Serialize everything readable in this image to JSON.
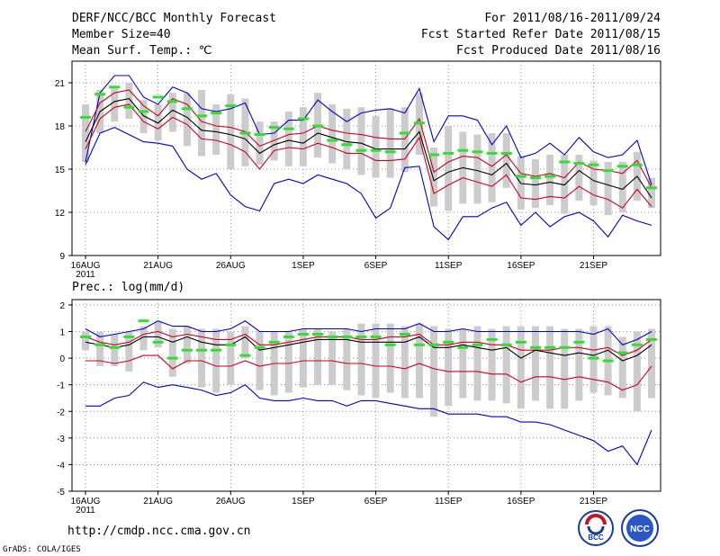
{
  "header": {
    "title": "DERF/NCC/BCC Monthly Forecast",
    "member_size": "Member Size=40",
    "variable": "Mean Surf. Temp.: ℃",
    "for_range": "For 2011/08/16-2011/09/24",
    "fcst_started": "Fcst Started Refer Date 2011/08/15",
    "fcst_produced": "Fcst Produced Date 2011/08/16"
  },
  "footer": {
    "url": "http://cmdp.ncc.cma.gov.cn",
    "credit": "GrADS: COLA/IGES",
    "bcc_logo_text": "BCC",
    "ncc_logo_text": "NCC"
  },
  "colors": {
    "ensemble_max_min": "#0000cc",
    "spread_band": "#cc0022",
    "ensemble_mean": "#000000",
    "member_box": "#cccccc",
    "median_dash": "#33dd33"
  },
  "chart_data": [
    {
      "type": "line",
      "title": "Mean Surf. Temp.: ℃",
      "xlabel": "",
      "ylabel": "",
      "x_days": 40,
      "x_ticks": [
        "16AUG",
        "21AUG",
        "26AUG",
        "1SEP",
        "6SEP",
        "11SEP",
        "16SEP",
        "21SEP"
      ],
      "x_tick_days": [
        1,
        6,
        11,
        16,
        21,
        26,
        31,
        36
      ],
      "x_year_label": "2011",
      "ylim": [
        9,
        22.5
      ],
      "y_ticks": [
        9,
        12,
        15,
        18,
        21
      ],
      "grid": true,
      "series": [
        {
          "name": "max",
          "color": "#0000cc",
          "values": [
            15.5,
            20.3,
            21.5,
            21.5,
            20.0,
            19.5,
            20.7,
            20.3,
            19.2,
            19.0,
            19.2,
            19.6,
            17.4,
            17.5,
            18.4,
            18.4,
            19.8,
            19.0,
            18.3,
            18.9,
            19.1,
            19.2,
            18.9,
            20.6,
            16.9,
            18.7,
            18.7,
            18.4,
            16.7,
            18.0,
            15.8,
            16.1,
            16.8,
            16.0,
            17.2,
            16.2,
            15.8,
            16.0,
            17.0,
            13.9
          ]
        },
        {
          "name": "mean_plus_sd",
          "color": "#cc0022",
          "values": [
            17.6,
            19.6,
            20.3,
            20.5,
            19.4,
            18.7,
            19.9,
            19.5,
            18.3,
            18.0,
            17.9,
            17.6,
            16.6,
            17.0,
            17.4,
            17.5,
            18.0,
            17.7,
            17.5,
            17.4,
            17.2,
            17.1,
            17.1,
            18.5,
            14.8,
            15.5,
            15.9,
            15.8,
            15.2,
            16.0,
            14.7,
            14.5,
            14.7,
            14.4,
            15.5,
            15.0,
            14.9,
            14.7,
            15.6,
            13.7
          ]
        },
        {
          "name": "mean",
          "color": "#000000",
          "values": [
            16.9,
            19.0,
            19.7,
            19.9,
            18.7,
            18.2,
            19.1,
            18.6,
            17.7,
            17.6,
            17.4,
            17.1,
            16.1,
            16.7,
            17.0,
            16.8,
            17.5,
            17.2,
            16.9,
            16.8,
            16.4,
            16.4,
            16.4,
            17.6,
            14.2,
            14.8,
            15.1,
            14.9,
            14.6,
            15.4,
            14.0,
            13.9,
            14.1,
            13.9,
            14.9,
            14.2,
            13.9,
            13.6,
            14.5,
            13.0
          ]
        },
        {
          "name": "mean_minus_sd",
          "color": "#cc0022",
          "values": [
            16.4,
            18.5,
            19.3,
            19.5,
            18.3,
            17.8,
            18.6,
            18.1,
            17.1,
            17.0,
            16.7,
            16.2,
            15.0,
            16.3,
            16.5,
            16.4,
            16.8,
            16.5,
            16.1,
            16.1,
            15.6,
            15.6,
            15.7,
            17.2,
            13.3,
            13.9,
            14.4,
            14.1,
            13.8,
            14.6,
            13.0,
            12.9,
            13.1,
            13.0,
            13.8,
            13.2,
            12.9,
            12.3,
            13.6,
            12.4
          ]
        },
        {
          "name": "min",
          "color": "#0000cc",
          "values": [
            15.3,
            17.5,
            17.9,
            17.4,
            16.9,
            16.8,
            16.6,
            15.0,
            14.3,
            14.7,
            13.2,
            12.4,
            12.1,
            14.0,
            14.3,
            14.0,
            14.6,
            14.3,
            14.0,
            13.3,
            11.6,
            12.3,
            15.1,
            15.2,
            11.0,
            10.1,
            11.7,
            11.7,
            12.3,
            12.7,
            11.1,
            12.0,
            11.0,
            11.7,
            12.0,
            11.4,
            10.3,
            11.8,
            11.4,
            11.1
          ]
        }
      ],
      "member_boxes": {
        "low": [
          15.5,
          17.5,
          18.3,
          18.5,
          17.5,
          17.0,
          17.6,
          16.6,
          15.9,
          16.0,
          15.0,
          15.2,
          15.3,
          15.6,
          15.2,
          15.2,
          15.8,
          15.4,
          15.0,
          14.6,
          14.4,
          14.4,
          14.8,
          16.0,
          12.4,
          12.1,
          12.6,
          12.6,
          12.7,
          13.7,
          12.2,
          12.3,
          12.5,
          11.9,
          12.8,
          12.5,
          11.8,
          12.0,
          12.8,
          12.3
        ],
        "high": [
          19.5,
          20.5,
          20.6,
          21.0,
          19.8,
          19.5,
          20.3,
          20.3,
          20.5,
          19.5,
          20.2,
          19.9,
          18.3,
          18.3,
          19.0,
          19.3,
          20.3,
          19.5,
          19.2,
          19.3,
          18.7,
          19.2,
          19.3,
          20.3,
          16.5,
          18.0,
          17.6,
          17.4,
          17.5,
          17.5,
          15.9,
          15.7,
          16.0,
          16.0,
          16.0,
          15.6,
          15.5,
          15.5,
          16.2,
          14.4
        ],
        "median": [
          18.6,
          20.2,
          20.7,
          19.3,
          19.0,
          20.0,
          19.7,
          19.2,
          18.7,
          18.9,
          19.4,
          17.5,
          17.4,
          17.9,
          17.8,
          18.5,
          18.0,
          17.0,
          16.7,
          16.3,
          16.3,
          16.2,
          17.5,
          18.2,
          16.0,
          16.1,
          16.3,
          16.2,
          16.1,
          16.1,
          14.5,
          14.4,
          14.5,
          15.5,
          15.4,
          15.3,
          14.9,
          15.2,
          15.3,
          13.7
        ]
      }
    },
    {
      "type": "line",
      "title": "Prec.: log(mm/d)",
      "xlabel": "",
      "ylabel": "",
      "x_days": 40,
      "x_ticks": [
        "16AUG",
        "21AUG",
        "26AUG",
        "1SEP",
        "6SEP",
        "11SEP",
        "16SEP",
        "21SEP"
      ],
      "x_tick_days": [
        1,
        6,
        11,
        16,
        21,
        26,
        31,
        36
      ],
      "x_year_label": "2011",
      "ylim": [
        -5,
        2.2
      ],
      "y_ticks": [
        -5,
        -4,
        -3,
        -2,
        -1,
        0,
        1,
        2
      ],
      "grid": true,
      "series": [
        {
          "name": "max",
          "color": "#0000cc",
          "values": [
            1.1,
            0.8,
            0.9,
            1.0,
            1.1,
            1.4,
            1.2,
            1.2,
            1.0,
            1.0,
            1.1,
            1.4,
            1.0,
            1.0,
            1.0,
            1.1,
            1.1,
            1.1,
            1.1,
            1.0,
            1.1,
            1.1,
            1.1,
            1.3,
            1.0,
            1.0,
            1.1,
            1.0,
            1.0,
            1.0,
            1.0,
            1.0,
            1.0,
            1.0,
            1.0,
            0.9,
            1.1,
            0.5,
            0.7,
            1.0
          ]
        },
        {
          "name": "mean_plus_sd",
          "color": "#cc0022",
          "values": [
            0.8,
            0.6,
            0.5,
            0.6,
            0.9,
            1.0,
            0.8,
            0.9,
            0.8,
            0.7,
            0.7,
            0.9,
            0.5,
            0.5,
            0.6,
            0.7,
            0.8,
            0.8,
            0.8,
            0.7,
            0.7,
            0.8,
            0.8,
            0.9,
            0.5,
            0.5,
            0.6,
            0.6,
            0.5,
            0.5,
            0.3,
            0.3,
            0.3,
            0.4,
            0.4,
            0.3,
            0.4,
            0.1,
            0.3,
            0.7
          ]
        },
        {
          "name": "mean",
          "color": "#000000",
          "values": [
            0.6,
            0.5,
            0.4,
            0.5,
            0.8,
            0.8,
            0.6,
            0.8,
            0.6,
            0.5,
            0.5,
            0.8,
            0.3,
            0.4,
            0.5,
            0.6,
            0.7,
            0.7,
            0.7,
            0.6,
            0.6,
            0.6,
            0.6,
            0.8,
            0.4,
            0.4,
            0.5,
            0.4,
            0.3,
            0.4,
            0.0,
            0.3,
            0.2,
            0.1,
            0.2,
            0.1,
            0.3,
            -0.1,
            0.1,
            0.5
          ]
        },
        {
          "name": "mean_minus_sd",
          "color": "#cc0022",
          "values": [
            -0.1,
            -0.1,
            -0.2,
            -0.1,
            0.1,
            0.1,
            -0.4,
            -0.1,
            -0.1,
            -0.3,
            -0.3,
            -0.1,
            -0.3,
            -0.2,
            -0.2,
            -0.1,
            -0.1,
            -0.1,
            -0.2,
            -0.2,
            -0.3,
            -0.3,
            -0.4,
            -0.2,
            -0.4,
            -0.5,
            -0.5,
            -0.5,
            -0.6,
            -0.6,
            -0.9,
            -0.7,
            -0.7,
            -0.8,
            -0.7,
            -0.8,
            -0.9,
            -1.2,
            -1.0,
            -0.3
          ]
        },
        {
          "name": "min",
          "color": "#0000cc",
          "values": [
            -1.8,
            -1.8,
            -1.5,
            -1.4,
            -0.9,
            -1.1,
            -1.0,
            -1.1,
            -1.2,
            -1.4,
            -1.3,
            -1.0,
            -1.5,
            -1.6,
            -1.6,
            -1.5,
            -1.6,
            -1.6,
            -1.8,
            -1.6,
            -1.6,
            -1.7,
            -1.8,
            -1.9,
            -1.9,
            -2.1,
            -2.1,
            -2.1,
            -2.2,
            -2.2,
            -2.4,
            -2.4,
            -2.5,
            -2.7,
            -2.9,
            -3.1,
            -3.5,
            -3.3,
            -4.0,
            -2.7
          ]
        }
      ],
      "member_boxes": {
        "low": [
          0.3,
          -0.3,
          -0.3,
          -0.5,
          0.3,
          0.4,
          -0.7,
          -0.2,
          -1.1,
          -1.3,
          -1.0,
          0.0,
          -1.2,
          -1.4,
          -1.3,
          -1.1,
          -1.0,
          -1.0,
          -1.2,
          -1.4,
          -1.5,
          -1.3,
          -1.5,
          -1.5,
          -2.2,
          -1.8,
          -1.5,
          -1.6,
          -1.6,
          -1.7,
          -1.9,
          -1.6,
          -1.9,
          -1.9,
          -1.6,
          -1.3,
          -1.4,
          -1.5,
          -2.0,
          -1.5
        ],
        "high": [
          1.0,
          1.0,
          0.9,
          1.0,
          1.2,
          1.4,
          1.1,
          1.2,
          1.1,
          1.1,
          1.0,
          1.2,
          1.0,
          1.0,
          1.0,
          1.1,
          1.1,
          1.0,
          1.1,
          1.3,
          1.3,
          1.3,
          1.2,
          1.3,
          1.2,
          1.1,
          1.1,
          1.2,
          1.1,
          1.2,
          1.2,
          1.2,
          1.2,
          1.1,
          1.1,
          1.2,
          1.2,
          0.8,
          1.0,
          1.1
        ],
        "median": [
          0.8,
          0.5,
          0.4,
          0.8,
          1.4,
          0.6,
          0.0,
          0.3,
          0.3,
          0.3,
          0.5,
          0.1,
          0.4,
          0.6,
          0.8,
          0.9,
          0.9,
          0.8,
          0.8,
          0.8,
          0.8,
          0.5,
          0.9,
          0.5,
          0.5,
          0.6,
          0.4,
          0.5,
          0.7,
          0.5,
          0.6,
          0.4,
          0.4,
          0.4,
          0.6,
          0.0,
          -0.1,
          0.2,
          0.5,
          0.7
        ]
      }
    }
  ]
}
